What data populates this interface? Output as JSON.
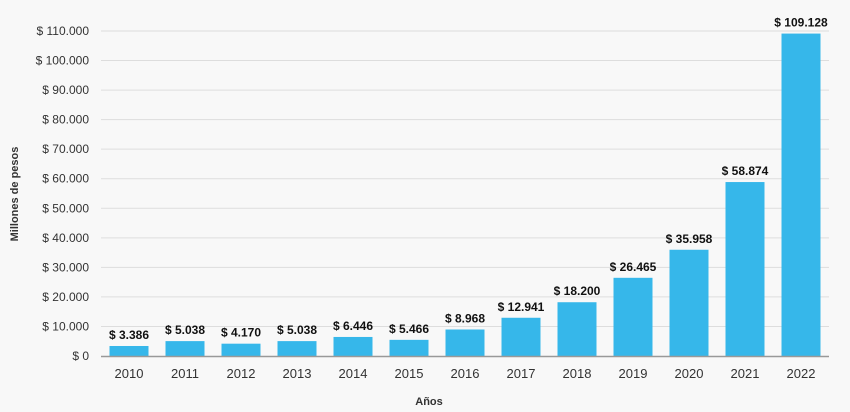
{
  "chart_data": {
    "type": "bar",
    "xlabel": "Años",
    "ylabel": "Millones de pesos",
    "categories": [
      "2010",
      "2011",
      "2012",
      "2013",
      "2014",
      "2015",
      "2016",
      "2017",
      "2018",
      "2019",
      "2020",
      "2021",
      "2022"
    ],
    "values": [
      3386,
      5038,
      4170,
      5038,
      6446,
      5466,
      8968,
      12941,
      18200,
      26465,
      35958,
      58874,
      109128
    ],
    "data_labels": [
      "$ 3.386",
      "$ 5.038",
      "$ 4.170",
      "$ 5.038",
      "$ 6.446",
      "$ 5.466",
      "$ 8.968",
      "$ 12.941",
      "$ 18.200",
      "$ 26.465",
      "$ 35.958",
      "$ 58.874",
      "$ 109.128"
    ],
    "y_ticks": [
      0,
      10000,
      20000,
      30000,
      40000,
      50000,
      60000,
      70000,
      80000,
      90000,
      100000,
      110000
    ],
    "y_tick_labels": [
      "$ 0",
      "$ 10.000",
      "$ 20.000",
      "$ 30.000",
      "$ 40.000",
      "$ 50.000",
      "$ 60.000",
      "$ 70.000",
      "$ 80.000",
      "$ 90.000",
      "$ 100.000",
      "$ 110.000"
    ],
    "ylim": [
      0,
      110000
    ],
    "grid": true,
    "legend": "none",
    "colors": {
      "bar": "#36b7ea",
      "grid": "#dddddd",
      "axis": "#999999",
      "background": "#f8f8f8"
    }
  }
}
